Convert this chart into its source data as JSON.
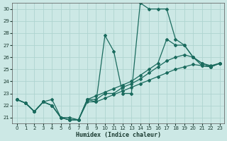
{
  "xlabel": "Humidex (Indice chaleur)",
  "xlim": [
    -0.5,
    23.5
  ],
  "ylim": [
    20.5,
    30.5
  ],
  "yticks": [
    21,
    22,
    23,
    24,
    25,
    26,
    27,
    28,
    29,
    30
  ],
  "xticks": [
    0,
    1,
    2,
    3,
    4,
    5,
    6,
    7,
    8,
    9,
    10,
    11,
    12,
    13,
    14,
    15,
    16,
    17,
    18,
    19,
    20,
    21,
    22,
    23
  ],
  "background_color": "#cce8e5",
  "grid_color": "#afd4d0",
  "line_color": "#1a6b5e",
  "series": [
    [
      22.5,
      22.2,
      21.5,
      22.3,
      22.5,
      21.0,
      21.0,
      20.8,
      22.3,
      22.3,
      27.8,
      26.5,
      23.0,
      23.0,
      30.5,
      30.0,
      30.0,
      30.0,
      27.5,
      27.0,
      26.0,
      25.3,
      25.2,
      25.5
    ],
    [
      22.5,
      22.2,
      21.5,
      22.3,
      22.0,
      21.0,
      20.8,
      20.8,
      22.5,
      22.8,
      23.1,
      23.4,
      23.7,
      24.0,
      24.5,
      25.0,
      25.5,
      27.5,
      27.0,
      27.0,
      26.0,
      25.5,
      25.3,
      25.5
    ],
    [
      22.5,
      22.2,
      21.5,
      22.3,
      22.0,
      21.0,
      20.8,
      20.8,
      22.5,
      22.5,
      23.0,
      23.0,
      23.5,
      23.8,
      24.2,
      24.7,
      25.2,
      25.7,
      26.0,
      26.2,
      26.0,
      25.5,
      25.2,
      25.5
    ],
    [
      22.5,
      22.2,
      21.5,
      22.3,
      22.0,
      21.0,
      20.8,
      20.8,
      22.5,
      22.3,
      22.6,
      22.9,
      23.2,
      23.5,
      23.8,
      24.1,
      24.4,
      24.7,
      25.0,
      25.2,
      25.4,
      25.3,
      25.2,
      25.5
    ]
  ],
  "marker": "D",
  "markersize": 2.0,
  "linewidth": 0.9
}
